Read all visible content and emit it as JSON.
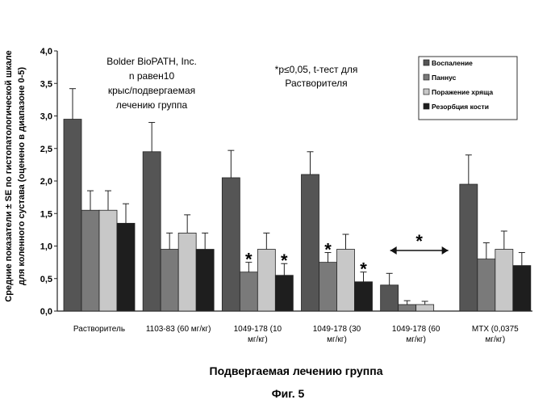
{
  "chart_data": {
    "type": "bar",
    "xlabel": "Подвергаемая лечению группа",
    "ylabel_lines": [
      "Средние показатели ± SE по гистопатологической шкале",
      "для коленного сустава (оценено в диапазоне 0-5)"
    ],
    "ylim": [
      0,
      4
    ],
    "yticks": [
      "0,0",
      "0,5",
      "1,0",
      "1,5",
      "2,0",
      "2,5",
      "3,0",
      "3,5",
      "4,0"
    ],
    "grid": false,
    "legend_position": "top-right",
    "categories": [
      [
        "Растворитель"
      ],
      [
        "1103-83 (60 мг/кг)"
      ],
      [
        "1049-178 (10",
        "мг/кг)"
      ],
      [
        "1049-178 (30",
        "мг/кг)"
      ],
      [
        "1049-178 (60",
        "мг/кг)"
      ],
      [
        "МТХ (0,0375",
        "мг/кг)"
      ]
    ],
    "series": [
      {
        "name": "Воспаление",
        "color": "#555555",
        "values": [
          2.95,
          2.45,
          2.05,
          2.1,
          0.4,
          1.95
        ],
        "errors": [
          0.47,
          0.45,
          0.42,
          0.35,
          0.18,
          0.45
        ]
      },
      {
        "name": "Паннус",
        "color": "#7a7a7a",
        "values": [
          1.55,
          0.95,
          0.6,
          0.75,
          0.1,
          0.8
        ],
        "errors": [
          0.3,
          0.25,
          0.15,
          0.15,
          0.06,
          0.25
        ]
      },
      {
        "name": "Поражение хряща",
        "color": "#c8c8c8",
        "values": [
          1.55,
          1.2,
          0.95,
          0.95,
          0.1,
          0.95
        ],
        "errors": [
          0.3,
          0.28,
          0.25,
          0.23,
          0.05,
          0.28
        ]
      },
      {
        "name": "Резорбция кости",
        "color": "#1e1e1e",
        "values": [
          1.35,
          0.95,
          0.55,
          0.45,
          0.0,
          0.7
        ],
        "errors": [
          0.3,
          0.25,
          0.18,
          0.15,
          0.0,
          0.2
        ]
      }
    ],
    "significance": [
      {
        "category_index": 2,
        "series_index": 1
      },
      {
        "category_index": 2,
        "series_index": 3
      },
      {
        "category_index": 3,
        "series_index": 1
      },
      {
        "category_index": 3,
        "series_index": 3
      }
    ],
    "significance_group_index": 4,
    "significance_marker": "*",
    "annotations": {
      "source_lines": [
        "Bolder BioPATH, Inc.",
        "n равен10",
        "крыс/подвергаемая",
        "лечению группа"
      ],
      "stat_lines": [
        "*p≤0,05, t-тест для",
        "Растворителя"
      ]
    }
  },
  "figure_caption": "Фиг. 5"
}
